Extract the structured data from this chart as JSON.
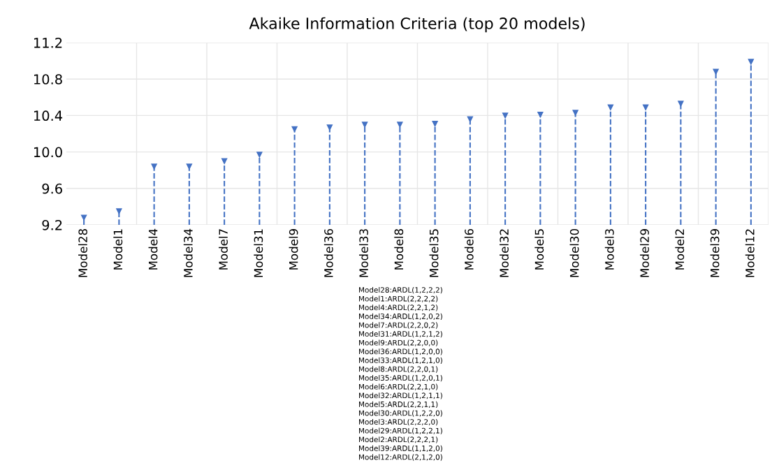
{
  "chart_data": {
    "type": "lollipop",
    "title": "Akaike Information Criteria (top 20 models)",
    "categories": [
      "Model28",
      "Model1",
      "Model4",
      "Model34",
      "Model7",
      "Model31",
      "Model9",
      "Model36",
      "Model33",
      "Model8",
      "Model35",
      "Model6",
      "Model32",
      "Model5",
      "Model30",
      "Model3",
      "Model29",
      "Model2",
      "Model39",
      "Model12"
    ],
    "values": [
      9.28,
      9.35,
      9.84,
      9.84,
      9.9,
      9.97,
      10.25,
      10.27,
      10.3,
      10.3,
      10.31,
      10.36,
      10.4,
      10.41,
      10.43,
      10.49,
      10.49,
      10.53,
      10.88,
      10.99
    ],
    "color": "#4472c4",
    "marker": "triangle",
    "line_style": "dashed",
    "ylim": [
      9.2,
      11.2
    ],
    "yticks": [
      {
        "value": 9.2,
        "label": "9.2"
      },
      {
        "value": 9.6,
        "label": "9.6"
      },
      {
        "value": 10.0,
        "label": "10.0"
      },
      {
        "value": 10.4,
        "label": "10.4"
      },
      {
        "value": 10.8,
        "label": "10.8"
      },
      {
        "value": 11.2,
        "label": "11.2"
      }
    ],
    "grid": true,
    "annotations": [
      "Model28:ARDL(1,2,2,2)",
      "Model1:ARDL(2,2,2,2)",
      "Model4:ARDL(2,2,1,2)",
      "Model34:ARDL(1,2,0,2)",
      "Model7:ARDL(2,2,0,2)",
      "Model31:ARDL(1,2,1,2)",
      "Model9:ARDL(2,2,0,0)",
      "Model36:ARDL(1,2,0,0)",
      "Model33:ARDL(1,2,1,0)",
      "Model8:ARDL(2,2,0,1)",
      "Model35:ARDL(1,2,0,1)",
      "Model6:ARDL(2,2,1,0)",
      "Model32:ARDL(1,2,1,1)",
      "Model5:ARDL(2,2,1,1)",
      "Model30:ARDL(1,2,2,0)",
      "Model3:ARDL(2,2,2,0)",
      "Model29:ARDL(1,2,2,1)",
      "Model2:ARDL(2,2,2,1)",
      "Model39:ARDL(1,1,2,0)",
      "Model12:ARDL(2,1,2,0)"
    ]
  }
}
